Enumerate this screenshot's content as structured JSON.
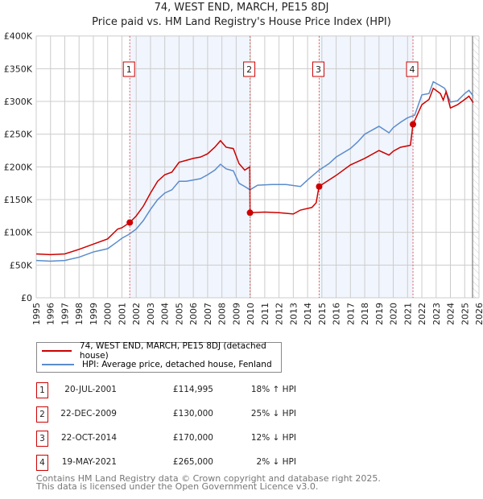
{
  "title": "74, WEST END, MARCH, PE15 8DJ",
  "subtitle": "Price paid vs. HM Land Registry's House Price Index (HPI)",
  "chart_data": {
    "type": "line",
    "xlim": [
      1995,
      2026
    ],
    "ylim": [
      0,
      400000
    ],
    "x_ticks": [
      "1995",
      "1996",
      "1997",
      "1998",
      "1999",
      "2000",
      "2001",
      "2002",
      "2003",
      "2004",
      "2005",
      "2006",
      "2007",
      "2008",
      "2009",
      "2010",
      "2011",
      "2012",
      "2013",
      "2014",
      "2015",
      "2016",
      "2017",
      "2018",
      "2019",
      "2020",
      "2021",
      "2022",
      "2023",
      "2024",
      "2025",
      "2026"
    ],
    "y_ticks": [
      {
        "v": 0,
        "label": "£0"
      },
      {
        "v": 50000,
        "label": "£50K"
      },
      {
        "v": 100000,
        "label": "£100K"
      },
      {
        "v": 150000,
        "label": "£150K"
      },
      {
        "v": 200000,
        "label": "£200K"
      },
      {
        "v": 250000,
        "label": "£250K"
      },
      {
        "v": 300000,
        "label": "£300K"
      },
      {
        "v": 350000,
        "label": "£350K"
      },
      {
        "v": 400000,
        "label": "£400K"
      }
    ],
    "series": [
      {
        "name": "74, WEST END, MARCH, PE15 8DJ (detached house)",
        "color": "#cc0000",
        "points": [
          [
            1995,
            67
          ],
          [
            1996,
            66
          ],
          [
            1997,
            67
          ],
          [
            1998,
            74
          ],
          [
            1999,
            82
          ],
          [
            2000,
            90
          ],
          [
            2000.7,
            105
          ],
          [
            2001,
            107
          ],
          [
            2001.55,
            115
          ],
          [
            2002,
            125
          ],
          [
            2002.5,
            140
          ],
          [
            2003,
            160
          ],
          [
            2003.5,
            178
          ],
          [
            2004,
            188
          ],
          [
            2004.5,
            192
          ],
          [
            2005,
            207
          ],
          [
            2005.5,
            210
          ],
          [
            2006,
            213
          ],
          [
            2006.5,
            215
          ],
          [
            2007,
            220
          ],
          [
            2007.5,
            230
          ],
          [
            2007.9,
            240
          ],
          [
            2008.3,
            230
          ],
          [
            2008.8,
            228
          ],
          [
            2009.2,
            205
          ],
          [
            2009.6,
            195
          ],
          [
            2009.95,
            200
          ],
          [
            2009.97,
            130
          ],
          [
            2011,
            131
          ],
          [
            2012,
            130
          ],
          [
            2013,
            128
          ],
          [
            2013.5,
            134
          ],
          [
            2014.3,
            138
          ],
          [
            2014.6,
            145
          ],
          [
            2014.8,
            170
          ],
          [
            2015.5,
            180
          ],
          [
            2016,
            187
          ],
          [
            2017,
            203
          ],
          [
            2018,
            213
          ],
          [
            2019,
            225
          ],
          [
            2019.7,
            218
          ],
          [
            2020,
            224
          ],
          [
            2020.5,
            230
          ],
          [
            2021.2,
            233
          ],
          [
            2021.38,
            265
          ],
          [
            2022,
            295
          ],
          [
            2022.5,
            303
          ],
          [
            2022.8,
            320
          ],
          [
            2023.3,
            312
          ],
          [
            2023.5,
            302
          ],
          [
            2023.7,
            315
          ],
          [
            2024,
            290
          ],
          [
            2024.5,
            295
          ],
          [
            2025,
            303
          ],
          [
            2025.3,
            308
          ],
          [
            2025.6,
            298
          ]
        ]
      },
      {
        "name": "HPI: Average price, detached house, Fenland",
        "color": "#5b8ccc",
        "points": [
          [
            1995,
            57
          ],
          [
            1996,
            56
          ],
          [
            1997,
            57
          ],
          [
            1998,
            62
          ],
          [
            1999,
            70
          ],
          [
            2000,
            75
          ],
          [
            2000.7,
            86
          ],
          [
            2001,
            91
          ],
          [
            2001.5,
            97
          ],
          [
            2002,
            105
          ],
          [
            2002.5,
            118
          ],
          [
            2003,
            135
          ],
          [
            2003.5,
            150
          ],
          [
            2004,
            160
          ],
          [
            2004.5,
            165
          ],
          [
            2005,
            178
          ],
          [
            2005.5,
            178
          ],
          [
            2006,
            180
          ],
          [
            2006.5,
            182
          ],
          [
            2007,
            188
          ],
          [
            2007.5,
            195
          ],
          [
            2007.9,
            204
          ],
          [
            2008.3,
            197
          ],
          [
            2008.8,
            194
          ],
          [
            2009.2,
            175
          ],
          [
            2009.6,
            170
          ],
          [
            2009.97,
            165
          ],
          [
            2010.5,
            172
          ],
          [
            2011.5,
            173
          ],
          [
            2012.5,
            173
          ],
          [
            2013.5,
            170
          ],
          [
            2014,
            180
          ],
          [
            2014.8,
            195
          ],
          [
            2015.5,
            205
          ],
          [
            2016,
            215
          ],
          [
            2017,
            228
          ],
          [
            2017.5,
            238
          ],
          [
            2018,
            250
          ],
          [
            2019,
            262
          ],
          [
            2019.7,
            252
          ],
          [
            2020,
            260
          ],
          [
            2020.5,
            268
          ],
          [
            2021,
            275
          ],
          [
            2021.5,
            279
          ],
          [
            2022,
            310
          ],
          [
            2022.5,
            312
          ],
          [
            2022.8,
            330
          ],
          [
            2023.3,
            324
          ],
          [
            2023.6,
            320
          ],
          [
            2024,
            299
          ],
          [
            2024.5,
            301
          ],
          [
            2025,
            312
          ],
          [
            2025.3,
            317
          ],
          [
            2025.6,
            308
          ]
        ]
      }
    ],
    "sales": [
      {
        "n": "1",
        "x": 2001.55,
        "y": 114995,
        "date": "20-JUL-2001",
        "price": "£114,995",
        "hpi": "18% ↑ HPI"
      },
      {
        "n": "2",
        "x": 2009.97,
        "y": 130000,
        "date": "22-DEC-2009",
        "price": "£130,000",
        "hpi": "25% ↓ HPI"
      },
      {
        "n": "3",
        "x": 2014.81,
        "y": 170000,
        "date": "22-OCT-2014",
        "price": "£170,000",
        "hpi": "12% ↓ HPI"
      },
      {
        "n": "4",
        "x": 2021.38,
        "y": 265000,
        "date": "19-MAY-2021",
        "price": "£265,000",
        "hpi": "2% ↓ HPI"
      }
    ],
    "shaded": [
      [
        2001.55,
        2009.97
      ],
      [
        2014.81,
        2021.38
      ]
    ],
    "forecast_from": 2025.55
  },
  "footer": {
    "line1": "Contains HM Land Registry data © Crown copyright and database right 2025.",
    "line2": "This data is licensed under the Open Government Licence v3.0."
  }
}
